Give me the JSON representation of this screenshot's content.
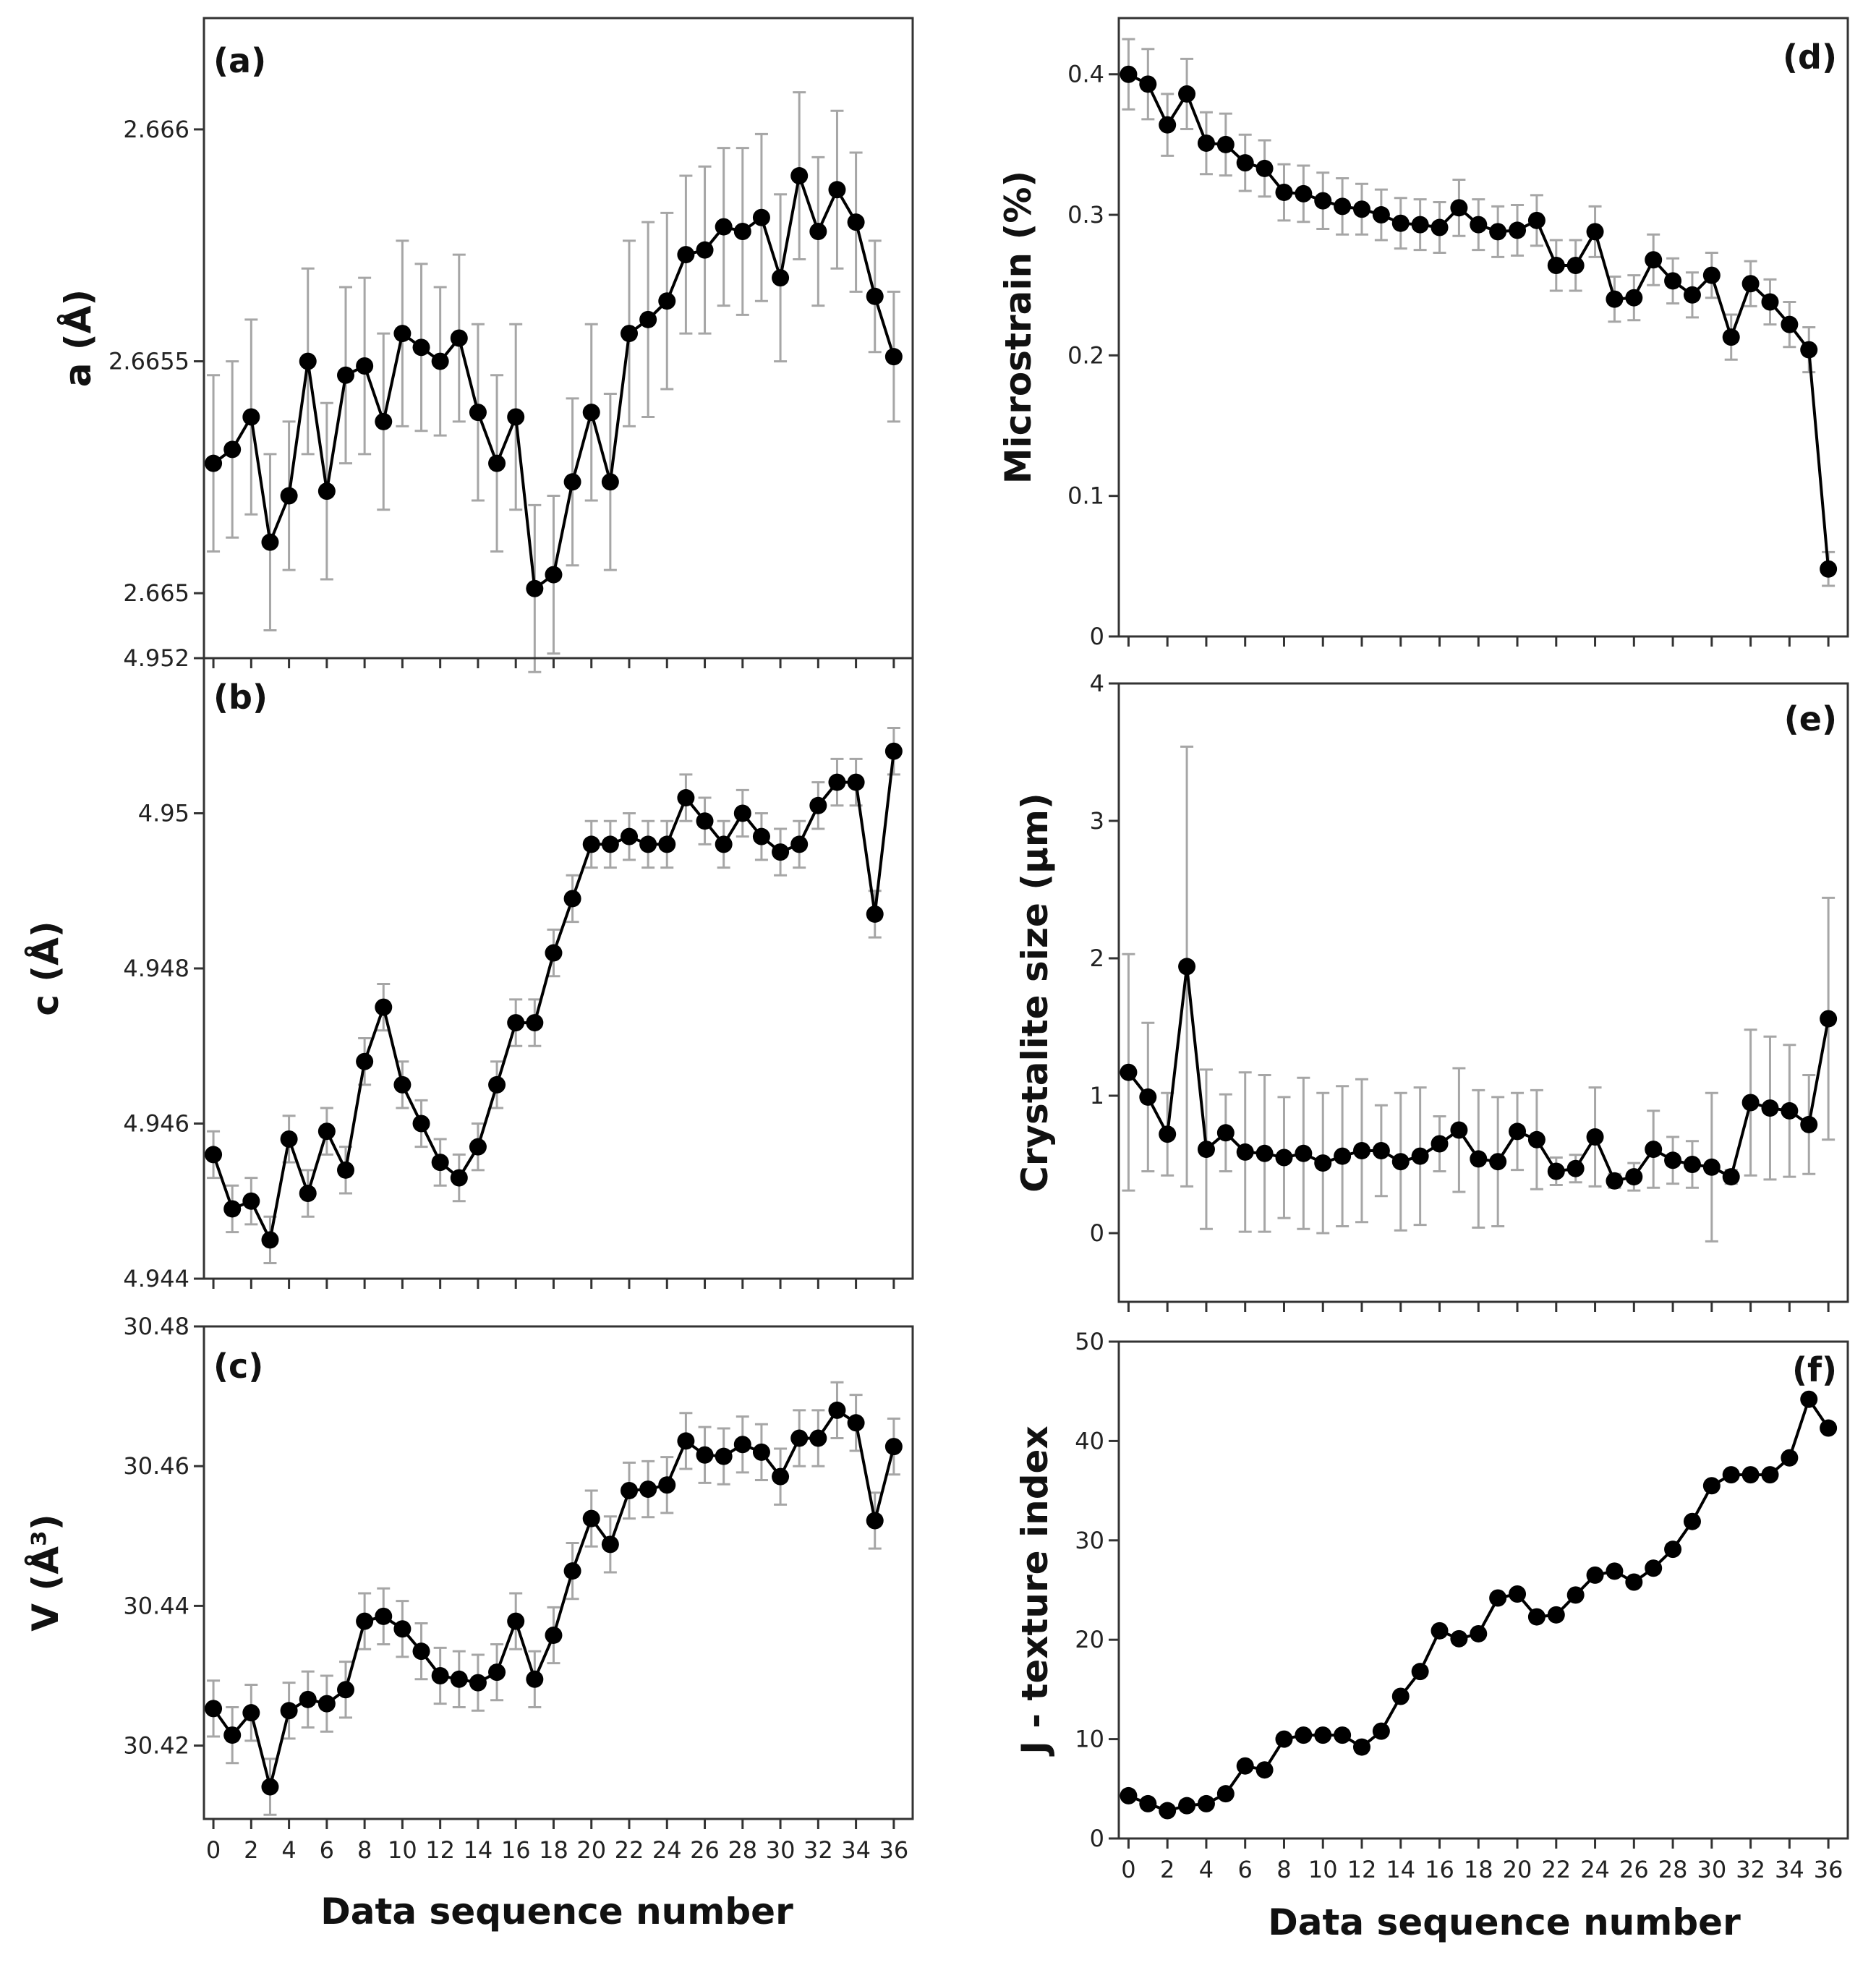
{
  "colors": {
    "line": "#000000",
    "marker": "#000000",
    "errorbar": "#a6a6a6",
    "frame": "#333333"
  },
  "xlabel": "Data sequence number",
  "chart_data": [
    {
      "id": "a",
      "panel_label": "(a)",
      "type": "line",
      "ylabel": "a (Å)",
      "ylim": [
        2.66486,
        2.66624
      ],
      "yticks": [
        2.665,
        2.6655,
        2.666
      ],
      "ytick_labels": [
        "2.665",
        "2.6655",
        "2.666"
      ],
      "xlim": [
        -0.5,
        37
      ],
      "xticks": [
        0,
        2,
        4,
        6,
        8,
        10,
        12,
        14,
        16,
        18,
        20,
        22,
        24,
        26,
        28,
        30,
        32,
        34,
        36
      ],
      "x_tick_labels_visible": false,
      "error_bars": true,
      "series": [
        {
          "x": [
            0,
            1,
            2,
            3,
            4,
            5,
            6,
            7,
            8,
            9,
            10,
            11,
            12,
            13,
            14,
            15,
            16,
            17,
            18,
            19,
            20,
            21,
            22,
            23,
            24,
            25,
            26,
            27,
            28,
            29,
            30,
            31,
            32,
            33,
            34,
            35,
            36
          ],
          "y": [
            2.66528,
            2.66531,
            2.66538,
            2.66511,
            2.66521,
            2.6655,
            2.66522,
            2.66547,
            2.66549,
            2.66537,
            2.66556,
            2.66553,
            2.6655,
            2.66555,
            2.66539,
            2.66528,
            2.66538,
            2.66501,
            2.66504,
            2.66524,
            2.66539,
            2.66524,
            2.66556,
            2.66559,
            2.66563,
            2.66573,
            2.66574,
            2.66579,
            2.66578,
            2.66581,
            2.66568,
            2.6659,
            2.66578,
            2.66587,
            2.6658,
            2.66564,
            2.66551
          ],
          "err": [
            0.00019,
            0.00019,
            0.00021,
            0.00019,
            0.00016,
            0.0002,
            0.00019,
            0.00019,
            0.00019,
            0.00019,
            0.0002,
            0.00018,
            0.00016,
            0.00018,
            0.00019,
            0.00019,
            0.0002,
            0.00018,
            0.00017,
            0.00018,
            0.00019,
            0.00019,
            0.0002,
            0.00021,
            0.00019,
            0.00017,
            0.00018,
            0.00017,
            0.00018,
            0.00018,
            0.00018,
            0.00018,
            0.00016,
            0.00017,
            0.00015,
            0.00012,
            0.00014
          ]
        }
      ]
    },
    {
      "id": "b",
      "panel_label": "(b)",
      "type": "line",
      "ylabel": "c (Å)",
      "ylim": [
        4.944,
        4.952
      ],
      "yticks": [
        4.944,
        4.946,
        4.948,
        4.95,
        4.952
      ],
      "ytick_labels": [
        "4.944",
        "4.946",
        "4.948",
        "4.95",
        "4.952"
      ],
      "xlim": [
        -0.5,
        37
      ],
      "xticks": [
        0,
        2,
        4,
        6,
        8,
        10,
        12,
        14,
        16,
        18,
        20,
        22,
        24,
        26,
        28,
        30,
        32,
        34,
        36
      ],
      "x_tick_labels_visible": false,
      "error_bars": true,
      "series": [
        {
          "x": [
            0,
            1,
            2,
            3,
            4,
            5,
            6,
            7,
            8,
            9,
            10,
            11,
            12,
            13,
            14,
            15,
            16,
            17,
            18,
            19,
            20,
            21,
            22,
            23,
            24,
            25,
            26,
            27,
            28,
            29,
            30,
            31,
            32,
            33,
            34,
            35,
            36
          ],
          "y": [
            4.9456,
            4.9449,
            4.945,
            4.9445,
            4.9458,
            4.9451,
            4.9459,
            4.9454,
            4.9468,
            4.9475,
            4.9465,
            4.946,
            4.9455,
            4.9453,
            4.9457,
            4.9465,
            4.9473,
            4.9473,
            4.9482,
            4.9489,
            4.9496,
            4.9496,
            4.9497,
            4.9496,
            4.9496,
            4.9502,
            4.9499,
            4.9496,
            4.95,
            4.9497,
            4.9495,
            4.9496,
            4.9501,
            4.9504,
            4.9504,
            4.9487,
            4.9508
          ],
          "err": [
            0.0003,
            0.0003,
            0.0003,
            0.0003,
            0.0003,
            0.0003,
            0.0003,
            0.0003,
            0.0003,
            0.0003,
            0.0003,
            0.0003,
            0.0003,
            0.0003,
            0.0003,
            0.0003,
            0.0003,
            0.0003,
            0.0003,
            0.0003,
            0.0003,
            0.0003,
            0.0003,
            0.0003,
            0.0003,
            0.0003,
            0.0003,
            0.0003,
            0.0003,
            0.0003,
            0.0003,
            0.0003,
            0.0003,
            0.0003,
            0.0003,
            0.0003,
            0.0003
          ]
        }
      ]
    },
    {
      "id": "c",
      "panel_label": "(c)",
      "type": "line",
      "ylabel": "V (Å³)",
      "ylim": [
        30.4095,
        30.48
      ],
      "yticks": [
        30.42,
        30.44,
        30.46,
        30.48
      ],
      "ytick_labels": [
        "30.42",
        "30.44",
        "30.46",
        "30.48"
      ],
      "xlim": [
        -0.5,
        37
      ],
      "xticks": [
        0,
        2,
        4,
        6,
        8,
        10,
        12,
        14,
        16,
        18,
        20,
        22,
        24,
        26,
        28,
        30,
        32,
        34,
        36
      ],
      "xtick_labels": [
        "0",
        "2",
        "4",
        "6",
        "8",
        "10",
        "12",
        "14",
        "16",
        "18",
        "20",
        "22",
        "24",
        "26",
        "28",
        "30",
        "32",
        "34",
        "36"
      ],
      "x_tick_labels_visible": true,
      "error_bars": true,
      "series": [
        {
          "x": [
            0,
            1,
            2,
            3,
            4,
            5,
            6,
            7,
            8,
            9,
            10,
            11,
            12,
            13,
            14,
            15,
            16,
            17,
            18,
            19,
            20,
            21,
            22,
            23,
            24,
            25,
            26,
            27,
            28,
            29,
            30,
            31,
            32,
            33,
            34,
            35,
            36
          ],
          "y": [
            30.4253,
            30.4215,
            30.4247,
            30.4141,
            30.425,
            30.4266,
            30.426,
            30.428,
            30.4378,
            30.4385,
            30.4367,
            30.4335,
            30.43,
            30.4295,
            30.429,
            30.4305,
            30.4378,
            30.4295,
            30.4358,
            30.445,
            30.4525,
            30.4488,
            30.4565,
            30.4567,
            30.4573,
            30.4636,
            30.4616,
            30.4614,
            30.4631,
            30.462,
            30.4585,
            30.464,
            30.464,
            30.468,
            30.4662,
            30.4522,
            30.4628
          ],
          "err": [
            0.004,
            0.004,
            0.004,
            0.004,
            0.004,
            0.004,
            0.004,
            0.004,
            0.004,
            0.004,
            0.004,
            0.004,
            0.004,
            0.004,
            0.004,
            0.004,
            0.004,
            0.004,
            0.004,
            0.004,
            0.004,
            0.004,
            0.004,
            0.004,
            0.004,
            0.004,
            0.004,
            0.004,
            0.004,
            0.004,
            0.004,
            0.004,
            0.004,
            0.004,
            0.004,
            0.004,
            0.004
          ]
        }
      ]
    },
    {
      "id": "d",
      "panel_label": "(d)",
      "type": "line",
      "ylabel": "Microstrain (%)",
      "ylim": [
        0,
        0.44
      ],
      "yticks": [
        0,
        0.1,
        0.2,
        0.3,
        0.4
      ],
      "ytick_labels": [
        "0",
        "0.1",
        "0.2",
        "0.3",
        "0.4"
      ],
      "xlim": [
        -0.5,
        37
      ],
      "xticks": [
        0,
        2,
        4,
        6,
        8,
        10,
        12,
        14,
        16,
        18,
        20,
        22,
        24,
        26,
        28,
        30,
        32,
        34,
        36
      ],
      "x_tick_labels_visible": false,
      "error_bars": true,
      "series": [
        {
          "x": [
            0,
            1,
            2,
            3,
            4,
            5,
            6,
            7,
            8,
            9,
            10,
            11,
            12,
            13,
            14,
            15,
            16,
            17,
            18,
            19,
            20,
            21,
            22,
            23,
            24,
            25,
            26,
            27,
            28,
            29,
            30,
            31,
            32,
            33,
            34,
            35,
            36
          ],
          "y": [
            0.4,
            0.393,
            0.364,
            0.386,
            0.351,
            0.35,
            0.337,
            0.333,
            0.316,
            0.315,
            0.31,
            0.306,
            0.304,
            0.3,
            0.294,
            0.293,
            0.291,
            0.305,
            0.293,
            0.288,
            0.289,
            0.296,
            0.264,
            0.264,
            0.288,
            0.24,
            0.241,
            0.268,
            0.253,
            0.243,
            0.257,
            0.213,
            0.251,
            0.238,
            0.222,
            0.204,
            0.048
          ],
          "err": [
            0.025,
            0.025,
            0.022,
            0.025,
            0.022,
            0.022,
            0.02,
            0.02,
            0.02,
            0.02,
            0.02,
            0.02,
            0.018,
            0.018,
            0.018,
            0.018,
            0.018,
            0.02,
            0.018,
            0.018,
            0.018,
            0.018,
            0.018,
            0.018,
            0.018,
            0.016,
            0.016,
            0.018,
            0.016,
            0.016,
            0.016,
            0.016,
            0.016,
            0.016,
            0.016,
            0.016,
            0.012
          ]
        }
      ]
    },
    {
      "id": "e",
      "panel_label": "(e)",
      "type": "line",
      "ylabel": "Crystalite size (µm)",
      "ylim": [
        -0.5,
        4
      ],
      "yticks": [
        0,
        1,
        2,
        3,
        4
      ],
      "ytick_labels": [
        "0",
        "1",
        "2",
        "3",
        "4"
      ],
      "xlim": [
        -0.5,
        37
      ],
      "xticks": [
        0,
        2,
        4,
        6,
        8,
        10,
        12,
        14,
        16,
        18,
        20,
        22,
        24,
        26,
        28,
        30,
        32,
        34,
        36
      ],
      "x_tick_labels_visible": false,
      "error_bars": true,
      "series": [
        {
          "x": [
            0,
            1,
            2,
            3,
            4,
            5,
            6,
            7,
            8,
            9,
            10,
            11,
            12,
            13,
            14,
            15,
            16,
            17,
            18,
            19,
            20,
            21,
            22,
            23,
            24,
            25,
            26,
            27,
            28,
            29,
            30,
            31,
            32,
            33,
            34,
            35,
            36
          ],
          "y": [
            1.17,
            0.99,
            0.72,
            1.94,
            0.61,
            0.73,
            0.59,
            0.58,
            0.55,
            0.58,
            0.51,
            0.56,
            0.6,
            0.6,
            0.52,
            0.56,
            0.65,
            0.75,
            0.54,
            0.52,
            0.74,
            0.68,
            0.45,
            0.47,
            0.7,
            0.38,
            0.41,
            0.61,
            0.53,
            0.5,
            0.48,
            0.41,
            0.95,
            0.91,
            0.89,
            0.79,
            1.56
          ],
          "err": [
            0.86,
            0.54,
            0.3,
            1.6,
            0.58,
            0.28,
            0.58,
            0.57,
            0.44,
            0.55,
            0.51,
            0.51,
            0.52,
            0.33,
            0.5,
            0.5,
            0.2,
            0.45,
            0.5,
            0.47,
            0.28,
            0.36,
            0.1,
            0.1,
            0.36,
            0.05,
            0.1,
            0.28,
            0.17,
            0.17,
            0.54,
            0.05,
            0.53,
            0.52,
            0.48,
            0.36,
            0.88
          ]
        }
      ]
    },
    {
      "id": "f",
      "panel_label": "(f)",
      "type": "line",
      "ylabel": "J - texture index",
      "ylim": [
        0,
        50
      ],
      "yticks": [
        0,
        10,
        20,
        30,
        40,
        50
      ],
      "ytick_labels": [
        "0",
        "10",
        "20",
        "30",
        "40",
        "50"
      ],
      "xlim": [
        -0.5,
        37
      ],
      "xticks": [
        0,
        2,
        4,
        6,
        8,
        10,
        12,
        14,
        16,
        18,
        20,
        22,
        24,
        26,
        28,
        30,
        32,
        34,
        36
      ],
      "xtick_labels": [
        "0",
        "2",
        "4",
        "6",
        "8",
        "10",
        "12",
        "14",
        "16",
        "18",
        "20",
        "22",
        "24",
        "26",
        "28",
        "30",
        "32",
        "34",
        "36"
      ],
      "x_tick_labels_visible": true,
      "error_bars": false,
      "series": [
        {
          "x": [
            0,
            1,
            2,
            3,
            4,
            5,
            6,
            7,
            8,
            9,
            10,
            11,
            12,
            13,
            14,
            15,
            16,
            17,
            18,
            19,
            20,
            21,
            22,
            23,
            24,
            25,
            26,
            27,
            28,
            29,
            30,
            31,
            32,
            33,
            34,
            35,
            36
          ],
          "y": [
            4.3,
            3.5,
            2.8,
            3.3,
            3.5,
            4.5,
            7.3,
            6.9,
            10.0,
            10.4,
            10.4,
            10.4,
            9.2,
            10.8,
            14.3,
            16.8,
            20.9,
            20.1,
            20.6,
            24.2,
            24.6,
            22.3,
            22.5,
            24.5,
            26.5,
            26.9,
            25.8,
            27.2,
            29.1,
            31.9,
            35.5,
            36.6,
            36.6,
            36.6,
            38.3,
            44.2,
            41.3
          ]
        }
      ]
    }
  ]
}
